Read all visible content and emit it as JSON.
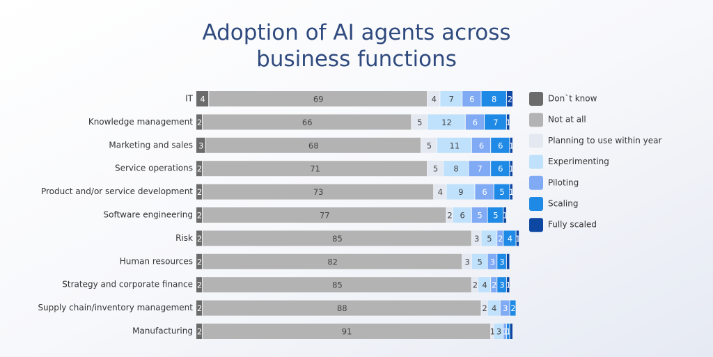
{
  "chart_data": {
    "type": "stacked-bar-horizontal",
    "title": "Adoption of AI agents across business functions",
    "categories": [
      "IT",
      "Knowledge management",
      "Marketing and sales",
      "Service operations",
      "Product and/or service development",
      "Software engineering",
      "Risk",
      "Human resources",
      "Strategy and corporate finance",
      "Supply chain/inventory management",
      "Manufacturing"
    ],
    "xlim": [
      0,
      100
    ],
    "legend": "right",
    "series": [
      {
        "name": "Don`t know",
        "color": "#6b6b6b",
        "values": [
          4,
          2,
          3,
          2,
          2,
          2,
          2,
          2,
          2,
          2,
          2
        ]
      },
      {
        "name": "Not at all",
        "color": "#b3b3b3",
        "values": [
          69,
          66,
          68,
          71,
          73,
          77,
          85,
          82,
          85,
          88,
          91
        ]
      },
      {
        "name": "Planning to use within year",
        "color": "#e3e8f1",
        "values": [
          4,
          5,
          5,
          5,
          4,
          2,
          3,
          3,
          2,
          2,
          1
        ]
      },
      {
        "name": "Experimenting",
        "color": "#bfe1fb",
        "values": [
          7,
          12,
          11,
          8,
          9,
          6,
          5,
          5,
          4,
          4,
          3
        ]
      },
      {
        "name": "Piloting",
        "color": "#80aaf4",
        "values": [
          6,
          6,
          6,
          7,
          6,
          5,
          2,
          3,
          2,
          3,
          1
        ]
      },
      {
        "name": "Scaling",
        "color": "#1f8ae6",
        "values": [
          8,
          7,
          6,
          6,
          5,
          5,
          4,
          3,
          3,
          2,
          1
        ]
      },
      {
        "name": "Fully scaled",
        "color": "#0d47a1",
        "values": [
          2,
          1,
          1,
          1,
          1,
          1,
          1,
          1,
          1,
          null,
          1
        ],
        "value_labels": [
          "2",
          "1",
          "1",
          "1",
          "1",
          "1",
          "1",
          null,
          "1",
          null,
          null
        ]
      }
    ]
  }
}
